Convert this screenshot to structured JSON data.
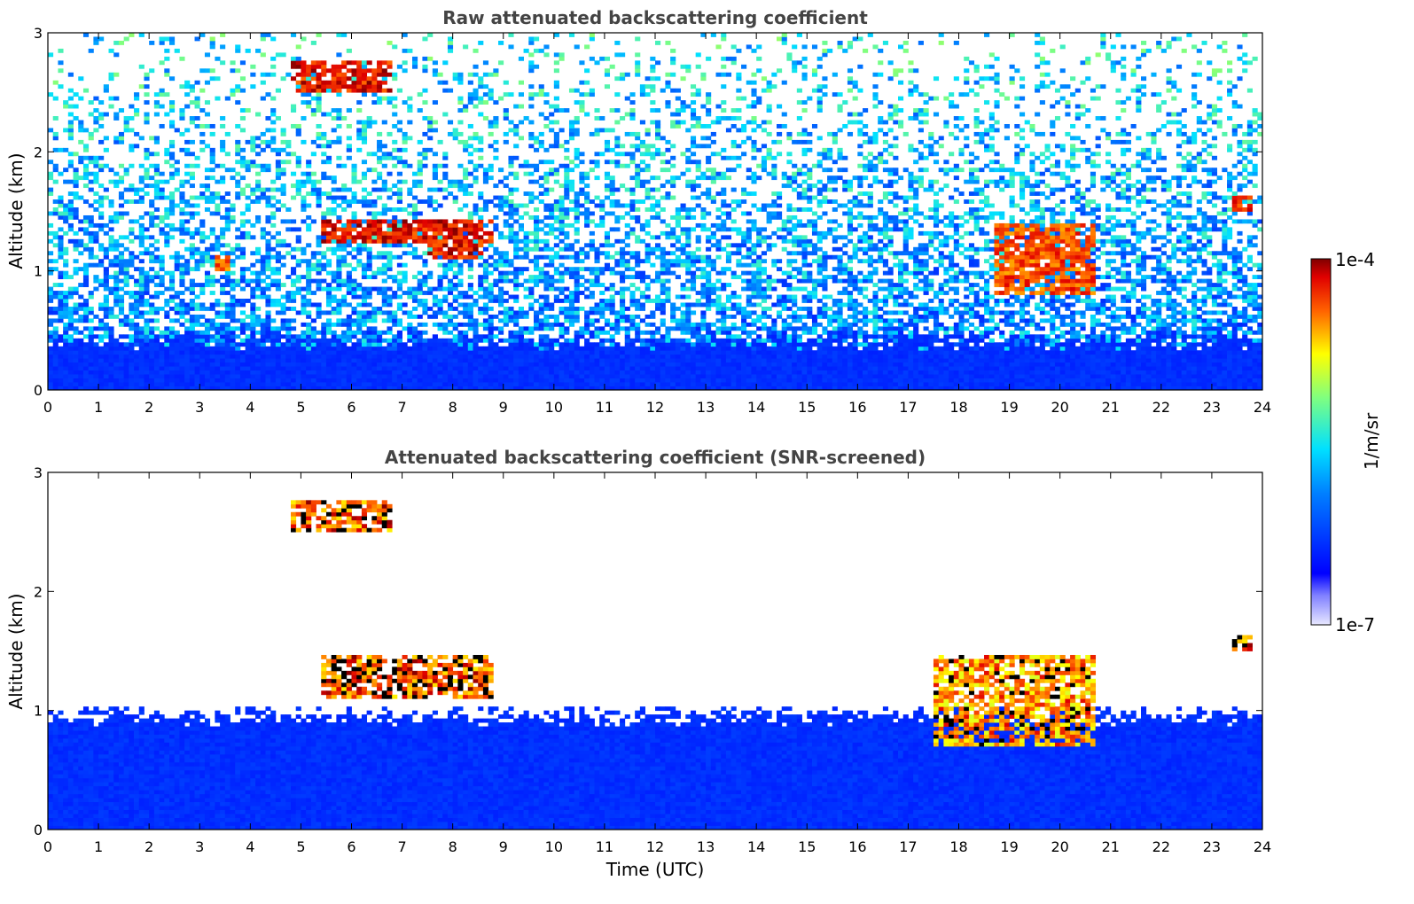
{
  "chart_data": [
    {
      "type": "heatmap",
      "title": "Raw attenuated backscattering coefficient",
      "ylabel": "Altitude (km)",
      "xlabel": "",
      "xlim": [
        0,
        24
      ],
      "ylim": [
        0,
        3
      ],
      "xticks": [
        "0",
        "1",
        "2",
        "3",
        "4",
        "5",
        "6",
        "7",
        "8",
        "9",
        "10",
        "11",
        "12",
        "13",
        "14",
        "15",
        "16",
        "17",
        "18",
        "19",
        "20",
        "21",
        "22",
        "23",
        "24"
      ],
      "yticks": [
        "0",
        "1",
        "2",
        "3"
      ],
      "features": [
        {
          "label": "boundary layer",
          "t": [
            0,
            24
          ],
          "z": [
            0,
            0.5
          ],
          "level": 0.22
        },
        {
          "label": "cloud",
          "t": [
            5.4,
            8.8
          ],
          "z": [
            1.25,
            1.42
          ],
          "level": 1.0
        },
        {
          "label": "cloud",
          "t": [
            7.5,
            8.6
          ],
          "z": [
            1.1,
            1.3
          ],
          "level": 1.0
        },
        {
          "label": "cloud",
          "t": [
            3.3,
            3.6
          ],
          "z": [
            1.0,
            1.12
          ],
          "level": 0.95
        },
        {
          "label": "cloud",
          "t": [
            4.8,
            6.8
          ],
          "z": [
            2.5,
            2.75
          ],
          "level": 1.0
        },
        {
          "label": "cloud",
          "t": [
            18.7,
            20.7
          ],
          "z": [
            0.8,
            1.4
          ],
          "level": 0.95
        },
        {
          "label": "cloud",
          "t": [
            23.4,
            23.8
          ],
          "z": [
            1.5,
            1.65
          ],
          "level": 1.0
        }
      ]
    },
    {
      "type": "heatmap",
      "title": "Attenuated backscattering coefficient (SNR-screened)",
      "ylabel": "Altitude (km)",
      "xlabel": "Time (UTC)",
      "xlim": [
        0,
        24
      ],
      "ylim": [
        0,
        3
      ],
      "xticks": [
        "0",
        "1",
        "2",
        "3",
        "4",
        "5",
        "6",
        "7",
        "8",
        "9",
        "10",
        "11",
        "12",
        "13",
        "14",
        "15",
        "16",
        "17",
        "18",
        "19",
        "20",
        "21",
        "22",
        "23",
        "24"
      ],
      "yticks": [
        "0",
        "1",
        "2",
        "3"
      ],
      "features": [
        {
          "label": "screened boundary layer",
          "t": [
            0,
            24
          ],
          "z": [
            0,
            1.05
          ],
          "level": 0.22
        },
        {
          "label": "cloud",
          "t": [
            5.4,
            8.8
          ],
          "z": [
            1.1,
            1.45
          ],
          "level": 1.0
        },
        {
          "label": "cloud",
          "t": [
            4.8,
            6.8
          ],
          "z": [
            2.5,
            2.75
          ],
          "level": 1.0
        },
        {
          "label": "cloud",
          "t": [
            17.5,
            20.7
          ],
          "z": [
            0.7,
            1.45
          ],
          "level": 0.95
        },
        {
          "label": "cloud",
          "t": [
            23.4,
            23.8
          ],
          "z": [
            1.5,
            1.65
          ],
          "level": 1.0
        }
      ]
    }
  ],
  "colorbar": {
    "label": "1/m/sr",
    "max_label": "1e-4",
    "min_label": "1e-7",
    "colormap": "jet",
    "colors": [
      "#ffffff",
      "#0000ff",
      "#00ffff",
      "#ffff00",
      "#ff0000",
      "#800000"
    ]
  }
}
